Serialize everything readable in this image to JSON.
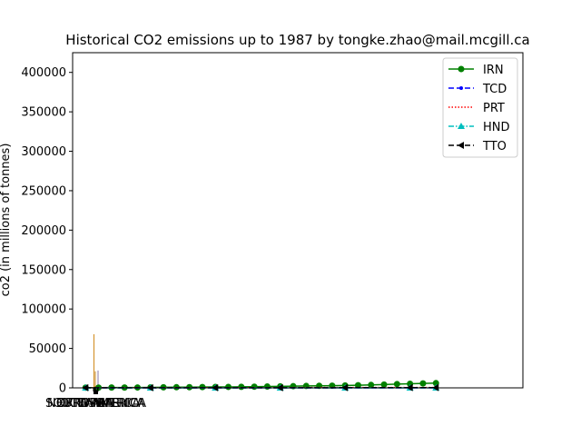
{
  "chart_data": {
    "type": "line",
    "title": "Historical CO2 emissions up to 1987 by tongke.zhao@mail.mcgill.ca",
    "xlabel": "",
    "ylabel": "co2 (in millions of tonnes)",
    "ylim": [
      0,
      425000
    ],
    "yticks": [
      0,
      50000,
      100000,
      150000,
      200000,
      250000,
      300000,
      350000,
      400000
    ],
    "ytick_labels": [
      "0",
      "50000",
      "100000",
      "150000",
      "200000",
      "250000",
      "300000",
      "350000",
      "400000"
    ],
    "x_category_labels": [
      "NORTH AMERICA",
      "SOUTH AMERICA",
      "EUROPE",
      "OCEANIA",
      "ASIA",
      "AFRICA"
    ],
    "grid": false,
    "legend_position": "top-right",
    "bars": [
      {
        "category": "NORTH AMERICA",
        "value": 68000,
        "color": "#d08a1a"
      },
      {
        "category": "SOUTH AMERICA",
        "value": 2000,
        "color": "#d08a1a"
      },
      {
        "category": "EUROPE",
        "value": 21000,
        "color": "#c48a2a"
      },
      {
        "category": "OCEANIA",
        "value": 1500,
        "color": "#d08a1a"
      },
      {
        "category": "ASIA",
        "value": 22000,
        "color": "#8a7aa8"
      },
      {
        "category": "AFRICA",
        "value": 3000,
        "color": "#d08a1a"
      }
    ],
    "series": [
      {
        "name": "IRN",
        "color": "#008000",
        "line": "solid",
        "marker": "circle",
        "x": [
          1960,
          1961,
          1962,
          1963,
          1964,
          1965,
          1966,
          1967,
          1968,
          1969,
          1970,
          1971,
          1972,
          1973,
          1974,
          1975,
          1976,
          1977,
          1978,
          1979,
          1980,
          1981,
          1982,
          1983,
          1984,
          1985,
          1986,
          1987
        ],
        "y": [
          300,
          350,
          400,
          450,
          500,
          600,
          700,
          800,
          900,
          1000,
          1100,
          1200,
          1300,
          1500,
          1700,
          1900,
          2100,
          2400,
          2600,
          2800,
          3000,
          3300,
          3700,
          4200,
          4800,
          5200,
          5600,
          6000
        ]
      },
      {
        "name": "TCD",
        "color": "#0000ff",
        "line": "dashed",
        "marker": "dot",
        "x": [
          1960,
          1965,
          1970,
          1975,
          1980,
          1985,
          1987
        ],
        "y": [
          5,
          8,
          10,
          12,
          15,
          18,
          20
        ]
      },
      {
        "name": "PRT",
        "color": "#ff0000",
        "line": "dotted",
        "marker": "none",
        "x": [
          1960,
          1965,
          1970,
          1975,
          1980,
          1985,
          1987
        ],
        "y": [
          200,
          250,
          300,
          350,
          400,
          450,
          500
        ]
      },
      {
        "name": "HND",
        "color": "#00bfbf",
        "line": "dashdot",
        "marker": "triangle",
        "x": [
          1960,
          1965,
          1970,
          1975,
          1980,
          1985,
          1987
        ],
        "y": [
          10,
          15,
          20,
          25,
          30,
          35,
          40
        ]
      },
      {
        "name": "TTO",
        "color": "#000000",
        "line": "dashed",
        "marker": "triangle-left",
        "x": [
          1960,
          1965,
          1970,
          1975,
          1980,
          1985,
          1987
        ],
        "y": [
          100,
          120,
          150,
          180,
          220,
          260,
          300
        ]
      }
    ]
  }
}
